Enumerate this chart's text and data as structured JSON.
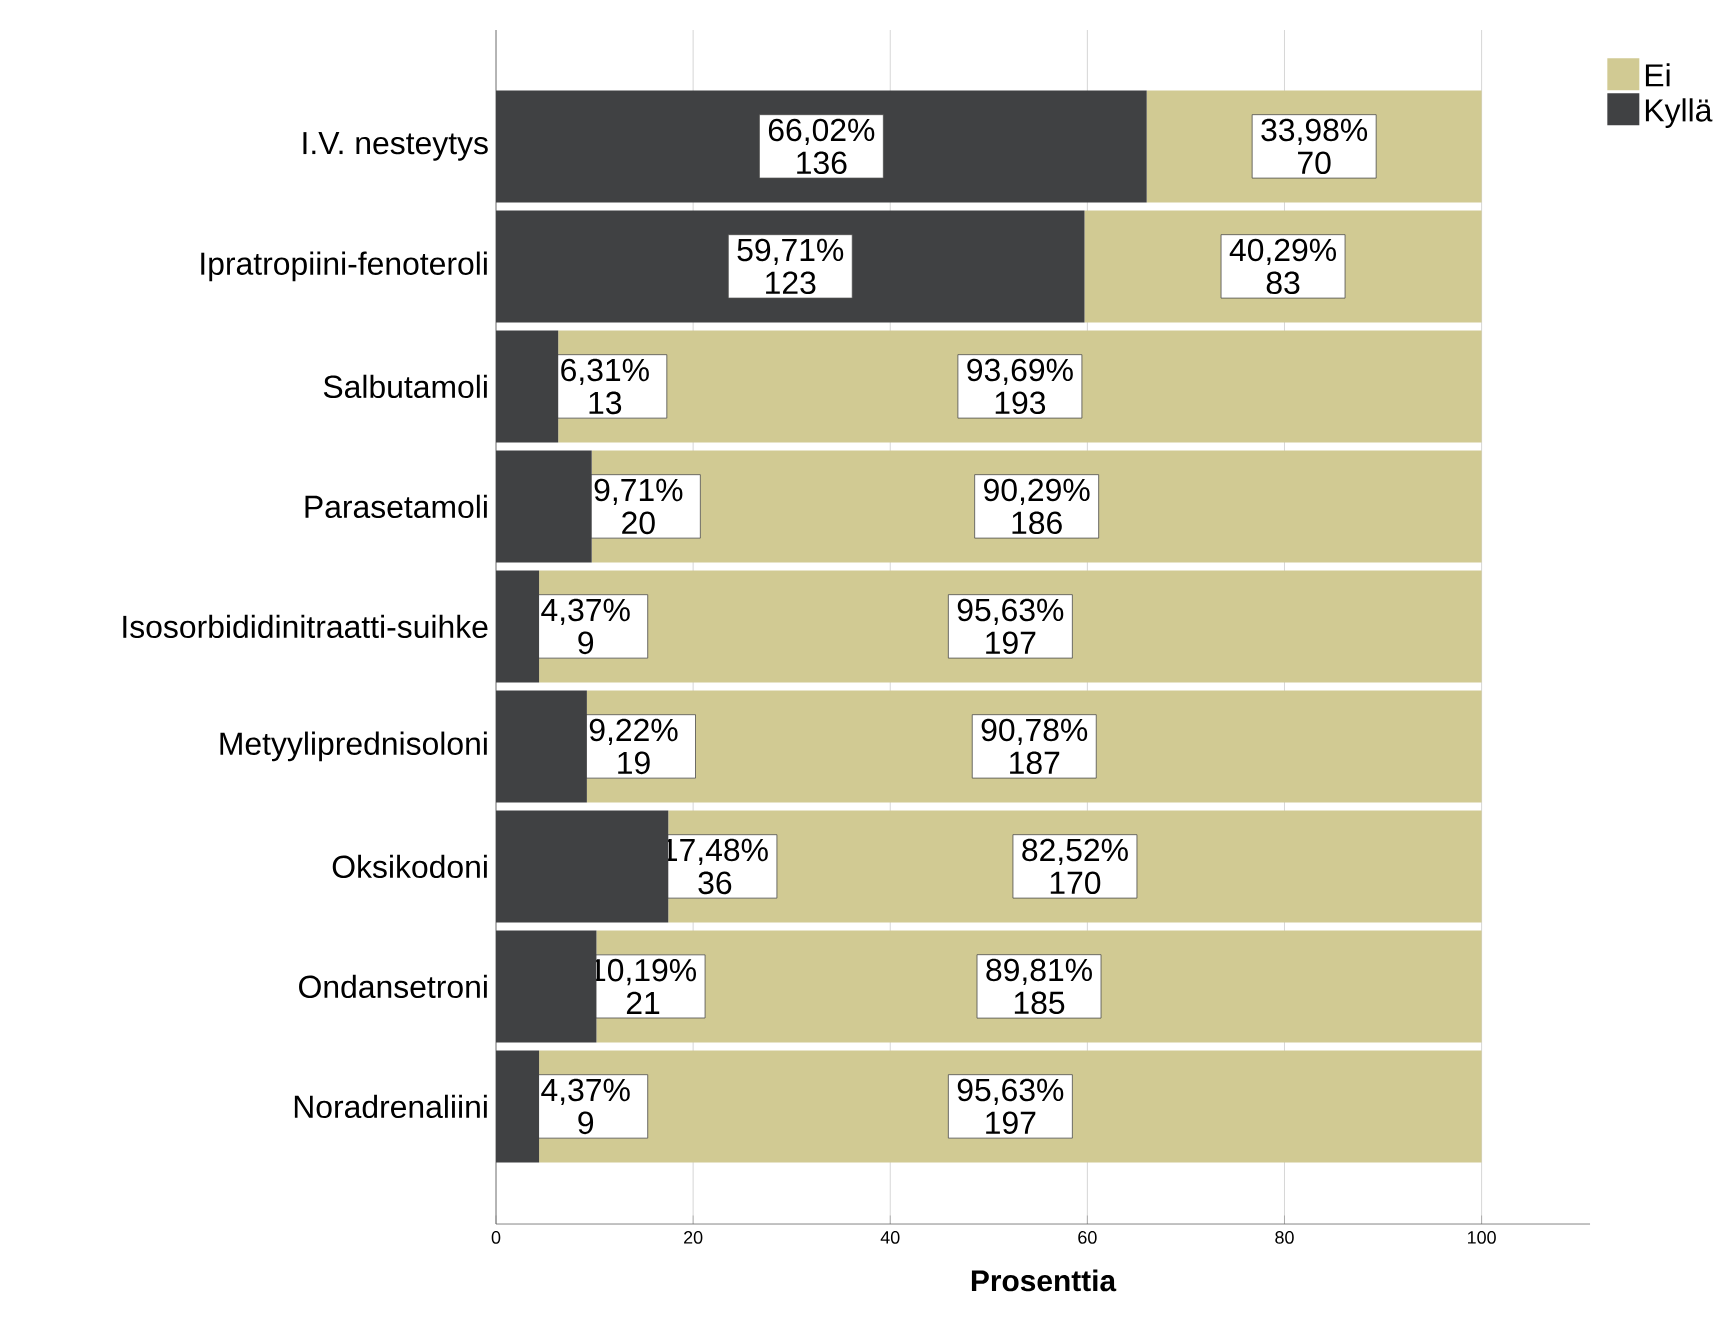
{
  "chart_data": {
    "type": "bar",
    "orientation": "horizontal",
    "stacked": true,
    "xlabel": "Prosenttia",
    "categories": [
      "I.V. nesteytys",
      "Ipratropiini-fenoteroli",
      "Salbutamoli",
      "Parasetamoli",
      "Isosorbididinitraatti-suihke",
      "Metyyliprednisoloni",
      "Oksikodoni",
      "Ondansetroni",
      "Noradrenaliini"
    ],
    "series": [
      {
        "name": "Kyllä",
        "color": "#404143",
        "values": [
          66.02,
          59.71,
          6.31,
          9.71,
          4.37,
          9.22,
          17.48,
          10.19,
          4.37
        ],
        "value_labels": [
          "66,02% 136",
          "59,71% 123",
          "6,31% 13",
          "9,71% 20",
          "4,37% 9",
          "9,22% 19",
          "17,48% 36",
          "10,19% 21",
          "4,37% 9"
        ]
      },
      {
        "name": "Ei",
        "color": "#d1ca93",
        "values": [
          33.98,
          40.29,
          93.69,
          90.29,
          95.63,
          90.78,
          82.52,
          89.81,
          95.63
        ],
        "value_labels": [
          "33,98% 70",
          "40,29% 83",
          "93,69% 193",
          "90,29% 186",
          "95,63% 197",
          "90,78% 187",
          "82,52% 170",
          "89,81% 185",
          "95,63% 197"
        ]
      }
    ],
    "xlim": [
      0,
      111
    ],
    "xticks": [
      0,
      20,
      40,
      60,
      80,
      100
    ],
    "grid": "x",
    "legend": "top right"
  }
}
